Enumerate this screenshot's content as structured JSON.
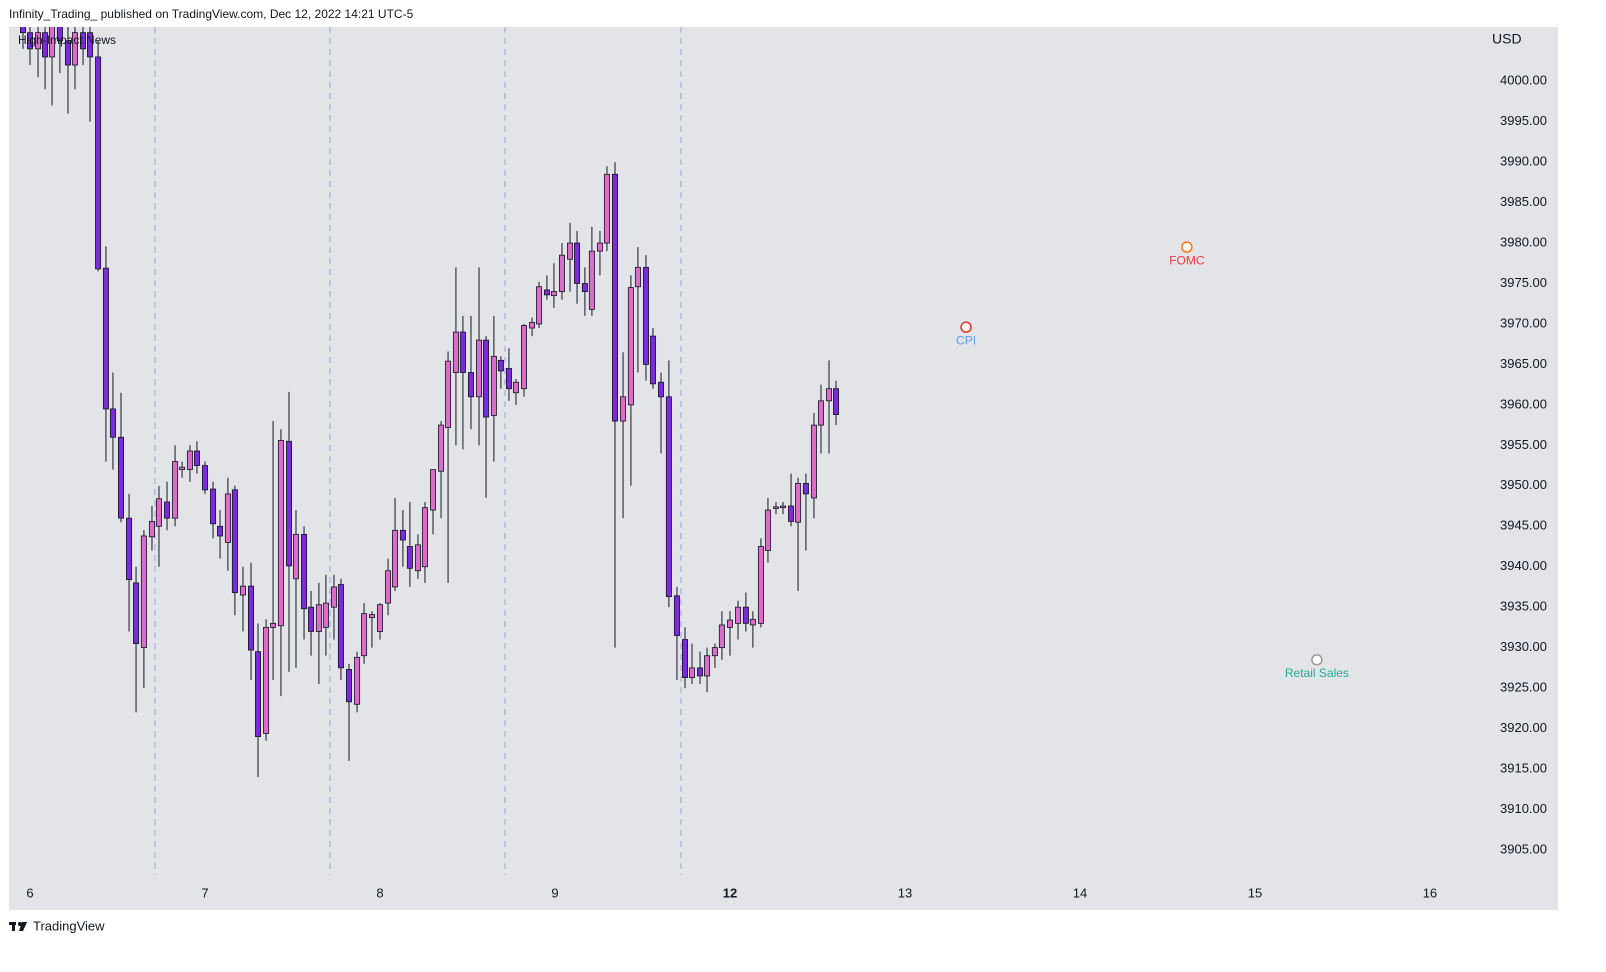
{
  "header": {
    "text": "Infinity_Trading_ published on TradingView.com, Dec 12, 2022 14:21 UTC-5"
  },
  "footer": {
    "brand": "TradingView"
  },
  "chart_data": {
    "type": "candlestick",
    "indicator": "High-Impact News",
    "currency": "USD",
    "up_color": "#db6cc9",
    "down_color": "#7b2bd9",
    "xlim": [
      -0.12,
      8.286
    ],
    "ylim": [
      3901.9,
      4006.7
    ],
    "xticks": [
      {
        "value": 0,
        "label": "6"
      },
      {
        "value": 1,
        "label": "7"
      },
      {
        "value": 2,
        "label": "8"
      },
      {
        "value": 3,
        "label": "9"
      },
      {
        "value": 4,
        "label": "12",
        "bold": true
      },
      {
        "value": 5,
        "label": "13"
      },
      {
        "value": 6,
        "label": "14"
      },
      {
        "value": 7,
        "label": "15"
      },
      {
        "value": 8,
        "label": "16"
      }
    ],
    "yticks": [
      {
        "value": 3905,
        "label": "3905.00"
      },
      {
        "value": 3910,
        "label": "3910.00"
      },
      {
        "value": 3915,
        "label": "3915.00"
      },
      {
        "value": 3920,
        "label": "3920.00"
      },
      {
        "value": 3925,
        "label": "3925.00"
      },
      {
        "value": 3930,
        "label": "3930.00"
      },
      {
        "value": 3935,
        "label": "3935.00"
      },
      {
        "value": 3940,
        "label": "3940.00"
      },
      {
        "value": 3945,
        "label": "3945.00"
      },
      {
        "value": 3950,
        "label": "3950.00"
      },
      {
        "value": 3955,
        "label": "3955.00"
      },
      {
        "value": 3960,
        "label": "3960.00"
      },
      {
        "value": 3965,
        "label": "3965.00"
      },
      {
        "value": 3970,
        "label": "3970.00"
      },
      {
        "value": 3975,
        "label": "3975.00"
      },
      {
        "value": 3980,
        "label": "3980.00"
      },
      {
        "value": 3985,
        "label": "3985.00"
      },
      {
        "value": 3990,
        "label": "3990.00"
      },
      {
        "value": 3995,
        "label": "3995.00"
      },
      {
        "value": 4000,
        "label": "4000.00"
      }
    ],
    "session_breaks": [
      0.714,
      1.714,
      2.714,
      3.72
    ],
    "events": [
      {
        "label": "CPI",
        "x": 5.349,
        "y": 3969.6,
        "color": "#5b9cf6",
        "icon_color": "#e53935"
      },
      {
        "label": "FOMC",
        "x": 6.611,
        "y": 3979.5,
        "color": "#f23645",
        "icon_color": "#ff7a1a"
      },
      {
        "label": "Retail Sales",
        "x": 7.354,
        "y": 3928.5,
        "color": "#22ab94",
        "icon_color": "#9e9e9e"
      }
    ],
    "x": [
      -0.04,
      0,
      0.046,
      0.086,
      0.126,
      0.171,
      0.217,
      0.257,
      0.303,
      0.343,
      0.389,
      0.434,
      0.474,
      0.52,
      0.566,
      0.606,
      0.651,
      0.697,
      0.737,
      0.783,
      0.829,
      0.869,
      0.914,
      0.954,
      1,
      1.046,
      1.086,
      1.131,
      1.171,
      1.217,
      1.263,
      1.303,
      1.349,
      1.389,
      1.434,
      1.48,
      1.52,
      1.566,
      1.606,
      1.651,
      1.691,
      1.737,
      1.777,
      1.823,
      1.869,
      1.909,
      1.954,
      2,
      2.046,
      2.086,
      2.131,
      2.171,
      2.217,
      2.257,
      2.303,
      2.349,
      2.389,
      2.434,
      2.474,
      2.52,
      2.566,
      2.606,
      2.651,
      2.691,
      2.737,
      2.777,
      2.823,
      2.869,
      2.909,
      2.954,
      2.994,
      3.04,
      3.086,
      3.126,
      3.171,
      3.211,
      3.257,
      3.297,
      3.343,
      3.389,
      3.434,
      3.474,
      3.52,
      3.56,
      3.606,
      3.651,
      3.697,
      3.743,
      3.783,
      3.829,
      3.869,
      3.914,
      3.954,
      4,
      4.046,
      4.091,
      4.131,
      4.177,
      4.217,
      4.263,
      4.303,
      4.349,
      4.389,
      4.434,
      4.48,
      4.52,
      4.566,
      4.606
    ],
    "open": [
      4007,
      4006,
      4004,
      4006,
      4003,
      4007,
      4005,
      4002,
      4006,
      4006,
      4003,
      3976.9,
      3959.5,
      3956,
      3946,
      3938,
      3930,
      3943.7,
      3945,
      3948,
      3946,
      3952,
      3952,
      3954.3,
      3952.5,
      3949.6,
      3945,
      3943,
      3949.5,
      3936.5,
      3937.6,
      3929.5,
      3919.4,
      3932.5,
      3932.7,
      3955.5,
      3938.5,
      3944,
      3935,
      3932,
      3932.5,
      3935,
      3937.8,
      3927.3,
      3923,
      3929,
      3933.7,
      3932,
      3935.5,
      3937.5,
      3944.5,
      3942.5,
      3939.5,
      3940,
      3947,
      3951.8,
      3957.2,
      3964,
      3969,
      3964,
      3961,
      3968,
      3958.7,
      3965.5,
      3964.5,
      3961.5,
      3962,
      3969.5,
      3970,
      3974.2,
      3973.5,
      3974,
      3978,
      3980,
      3975,
      3971.8,
      3979,
      3980,
      3988.5,
      3958,
      3960,
      3974.6,
      3977,
      3968.5,
      3962.8,
      3961,
      3936.4,
      3931,
      3926.3,
      3927.5,
      3926.5,
      3929,
      3930,
      3932.5,
      3933,
      3935,
      3932.8,
      3933,
      3942,
      3947.2,
      3947.3,
      3947.5,
      3945.5,
      3950.3,
      3948.5,
      3957.5,
      3960.5,
      3962
    ],
    "high": [
      4008,
      4008,
      4007,
      4008,
      4008,
      4008,
      4008,
      4008,
      4008,
      4008,
      4005,
      3979.6,
      3964,
      3961.5,
      3949,
      3940,
      3944.5,
      3947.5,
      3950,
      3950.5,
      3955,
      3953,
      3955,
      3955.5,
      3953,
      3950.5,
      3947,
      3951,
      3950,
      3940,
      3940.5,
      3933,
      3933.5,
      3958,
      3957,
      3961.6,
      3947,
      3945,
      3937,
      3938,
      3939,
      3939,
      3938.5,
      3928,
      3929.5,
      3935.5,
      3934.5,
      3935.5,
      3941,
      3948.5,
      3947,
      3948,
      3944,
      3948,
      3952,
      3958,
      3966.6,
      3977,
      3971,
      3971,
      3977,
      3968.5,
      3971,
      3966,
      3967,
      3963.2,
      3970,
      3970.8,
      3975.2,
      3976,
      3977.5,
      3980,
      3982.5,
      3981.5,
      3977,
      3982,
      3981.5,
      3989.5,
      3990,
      3966.5,
      3976,
      3979.5,
      3978.5,
      3969.5,
      3964,
      3965.5,
      3937.5,
      3932.5,
      3930.5,
      3929.5,
      3930,
      3930.5,
      3934.5,
      3934.5,
      3935.8,
      3936.8,
      3934.5,
      3943.5,
      3948.5,
      3948,
      3948,
      3951.5,
      3951,
      3951.5,
      3959,
      3962.5,
      3965.5,
      3963
    ],
    "low": [
      4004,
      4002,
      4000.5,
      3999,
      3997,
      4001,
      3996,
      3999,
      4002,
      3995,
      3976.5,
      3953,
      3952,
      3945.5,
      3932,
      3922,
      3925,
      3942,
      3940,
      3944.5,
      3945,
      3951,
      3950.5,
      3951.5,
      3949,
      3943.5,
      3941,
      3939.5,
      3934,
      3932,
      3926,
      3914,
      3918.5,
      3926,
      3924,
      3927,
      3927.5,
      3931,
      3929,
      3925.5,
      3929,
      3931,
      3926,
      3916,
      3922,
      3928,
      3930,
      3931,
      3934,
      3937,
      3940,
      3937.5,
      3938.5,
      3938,
      3944,
      3946,
      3938,
      3955,
      3954.5,
      3957,
      3955,
      3948.5,
      3953,
      3962,
      3960.5,
      3960,
      3961,
      3968.5,
      3969.5,
      3973,
      3972,
      3973,
      3974,
      3972.5,
      3971,
      3971,
      3976,
      3979,
      3930,
      3946,
      3950,
      3964,
      3963,
      3962,
      3954,
      3935,
      3926,
      3925,
      3925.5,
      3925.5,
      3924.5,
      3927.5,
      3928.5,
      3929,
      3931,
      3932,
      3930,
      3932.5,
      3940.5,
      3946.5,
      3946.5,
      3945,
      3937,
      3942,
      3946,
      3954,
      3954,
      3957.5
    ],
    "close": [
      4006,
      4004,
      4006,
      4003,
      4007,
      4005,
      4002,
      4006,
      4004,
      4003,
      3976.8,
      3959.5,
      3956,
      3946,
      3938.4,
      3930.5,
      3943.8,
      3945.6,
      3948.4,
      3946,
      3953,
      3952.3,
      3954.3,
      3952.5,
      3949.5,
      3945.3,
      3943.8,
      3949,
      3936.8,
      3937.6,
      3929.7,
      3919,
      3932.5,
      3933,
      3955.6,
      3940.1,
      3944,
      3934.8,
      3932,
      3935.3,
      3935.5,
      3937.5,
      3927.5,
      3923.3,
      3928.8,
      3934.2,
      3934.1,
      3935.3,
      3939.5,
      3944.5,
      3943.3,
      3939.8,
      3942.7,
      3947.3,
      3952,
      3957.5,
      3965.4,
      3969,
      3964,
      3961,
      3968,
      3958.5,
      3966,
      3964.2,
      3962,
      3962.8,
      3969.8,
      3970.2,
      3974.6,
      3973.6,
      3974,
      3978.5,
      3980,
      3975,
      3974,
      3979,
      3980,
      3988.5,
      3958,
      3961,
      3974.5,
      3977,
      3965,
      3962.6,
      3961,
      3936.3,
      3931.5,
      3926.3,
      3927.5,
      3926.5,
      3929,
      3930,
      3932.8,
      3933.4,
      3935,
      3933,
      3933.5,
      3942.5,
      3947,
      3947.4,
      3947.5,
      3945.6,
      3950.3,
      3949,
      3957.5,
      3960.5,
      3962,
      3958.8
    ]
  }
}
